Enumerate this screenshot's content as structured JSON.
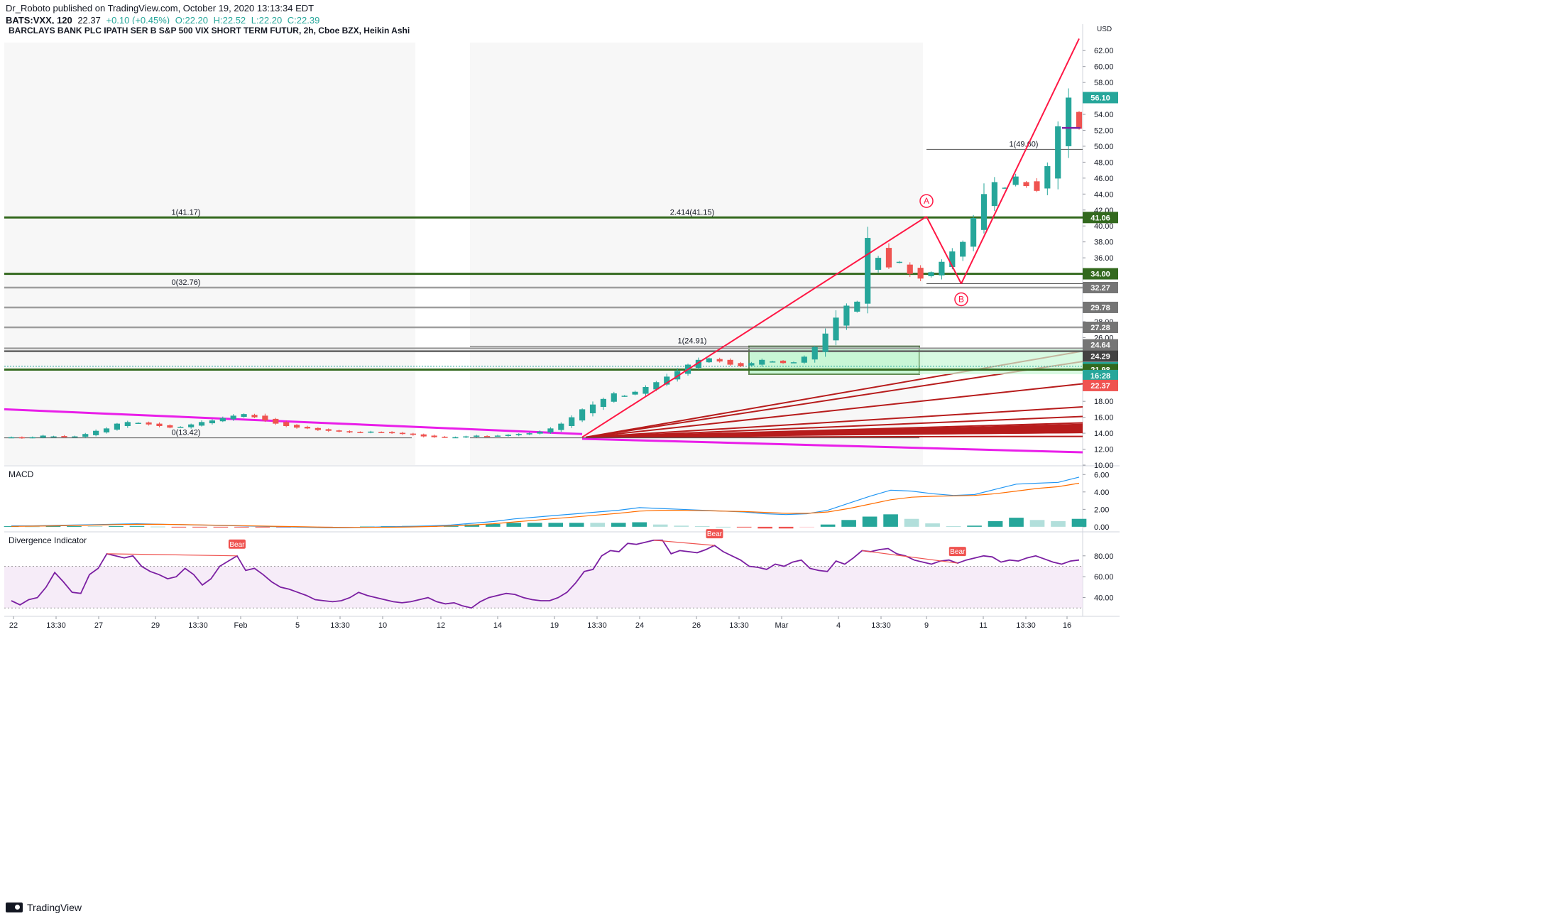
{
  "header": {
    "publisher": "Dr_Roboto published on TradingView.com, October 19, 2020 13:13:34 EDT",
    "symbol": "BATS:VXX, 120",
    "last": "22.37",
    "change": "+0.10 (+0.45%)",
    "open": "O:22.20",
    "high": "H:22.52",
    "low": "L:22.20",
    "close": "C:22.39"
  },
  "chart_title": "BARCLAYS BANK PLC IPATH SER B S&P 500 VIX SHORT TERM FUTUR, 2h, Cboe BZX, Heikin Ashi",
  "colors": {
    "up": "#26a69a",
    "down": "#ef5350",
    "green_line": "#33691e",
    "gray_line": "#9e9e9e",
    "magenta": "#e91ee9",
    "red": "#ff1744",
    "dark_red": "#b71c1c",
    "macd": "#2196f3",
    "signal": "#ff6d00",
    "osc": "#7b1fa2"
  },
  "currency": "USD",
  "brand": "TradingView",
  "chart_data": [
    {
      "type": "candlestick",
      "title": "BARCLAYS BANK PLC IPATH SER B S&P 500 VIX SHORT TERM FUTUR, 2h, Cboe BZX, Heikin Ashi",
      "ylim": [
        10,
        63
      ],
      "y_ticks": [
        10,
        12,
        14,
        16,
        18,
        20,
        22,
        24,
        26,
        28,
        30,
        32,
        34,
        36,
        38,
        40,
        42,
        44,
        46,
        48,
        50,
        52,
        54,
        56,
        58,
        60,
        62
      ],
      "x_ticks": [
        "22",
        "13:30",
        "27",
        "29",
        "13:30",
        "Feb",
        "5",
        "13:30",
        "10",
        "12",
        "14",
        "19",
        "13:30",
        "24",
        "26",
        "13:30",
        "Mar",
        "4",
        "13:30",
        "9",
        "11",
        "13:30",
        "16"
      ],
      "close_path": [
        13.5,
        13.4,
        13.5,
        13.7,
        13.6,
        13.5,
        13.6,
        13.9,
        14.3,
        14.6,
        15.2,
        15.4,
        15.3,
        15.1,
        14.9,
        14.7,
        14.8,
        15.1,
        15.4,
        15.6,
        15.9,
        16.2,
        16.4,
        16.0,
        15.6,
        15.2,
        14.9,
        14.7,
        14.6,
        14.4,
        14.3,
        14.2,
        14.1,
        14.1,
        14.2,
        14.1,
        14.0,
        13.9,
        13.8,
        13.6,
        13.5,
        13.5,
        13.5,
        13.6,
        13.7,
        13.6,
        13.7,
        13.8,
        13.9,
        14.0,
        14.2,
        14.6,
        15.2,
        16.0,
        17.0,
        17.6,
        18.3,
        19.0,
        18.7,
        19.2,
        19.8,
        20.4,
        21.1,
        21.8,
        22.6,
        23.2,
        23.4,
        23.0,
        22.6,
        22.4,
        22.8,
        23.2,
        23.0,
        22.8,
        22.9,
        23.6,
        24.8,
        26.5,
        28.5,
        30.0,
        30.5,
        38.5,
        36.0,
        34.8,
        35.5,
        34.0,
        33.4,
        34.2,
        35.5,
        36.8,
        38.0,
        41.0,
        44.0,
        45.5,
        44.8,
        46.2,
        45.0,
        44.4,
        47.5,
        52.5,
        56.1,
        52.2
      ],
      "horizontal_levels": [
        {
          "price": 41.06,
          "label": "41.06",
          "kind": "green",
          "line_label": "1(41.17)",
          "line_label2": "2.414(41.15)"
        },
        {
          "price": 34.0,
          "label": "34.00",
          "kind": "green"
        },
        {
          "price": 32.27,
          "label": "32.27",
          "kind": "gray",
          "line_label": "0(32.76)"
        },
        {
          "price": 29.78,
          "label": "29.78",
          "kind": "gray"
        },
        {
          "price": 27.28,
          "label": "27.28",
          "kind": "gray"
        },
        {
          "price": 24.64,
          "label": "24.64",
          "kind": "gray"
        },
        {
          "price": 24.29,
          "label": "24.29",
          "kind": "dark"
        },
        {
          "price": 22.39,
          "label": "22.39",
          "kind": "up"
        },
        {
          "price": 21.98,
          "label": "21.98",
          "kind": "green"
        }
      ],
      "price_labels": [
        {
          "price": 56.1,
          "label": "56.10",
          "kind": "up"
        },
        {
          "price": 21.0,
          "label": "16:28",
          "kind": "up"
        },
        {
          "price": 20.9,
          "label": "22.37",
          "kind": "down"
        }
      ],
      "fib_labels": [
        {
          "text": "1(49.60)",
          "price": 49.6
        },
        {
          "text": "1(24.91)",
          "price": 24.91
        },
        {
          "text": "0(13.42)",
          "price": 13.42
        }
      ],
      "pattern_points": [
        "A",
        "B"
      ]
    },
    {
      "type": "line",
      "title": "MACD",
      "ylim": [
        -0.5,
        7
      ],
      "y_ticks": [
        0.0,
        2.0,
        4.0,
        6.0
      ],
      "series": [
        {
          "name": "",
          "values": [
            0.1,
            0.1,
            0.15,
            0.2,
            0.25,
            0.3,
            0.35,
            0.3,
            0.25,
            0.2,
            0.15,
            0.1,
            0.05,
            0.0,
            -0.05,
            -0.1,
            -0.1,
            -0.05,
            0.0,
            0.05,
            0.1,
            0.2,
            0.4,
            0.6,
            0.9,
            1.1,
            1.3,
            1.5,
            1.7,
            1.9,
            2.2,
            2.1,
            2.0,
            1.9,
            1.8,
            1.7,
            1.5,
            1.4,
            1.5,
            1.9,
            2.7,
            3.5,
            4.2,
            4.1,
            3.8,
            3.6,
            3.7,
            4.3,
            4.9,
            5.0,
            5.1,
            5.7
          ]
        },
        {
          "name": "",
          "values": [
            0.05,
            0.07,
            0.1,
            0.15,
            0.2,
            0.25,
            0.28,
            0.28,
            0.26,
            0.22,
            0.18,
            0.13,
            0.08,
            0.04,
            0.0,
            -0.05,
            -0.07,
            -0.07,
            -0.05,
            -0.02,
            0.03,
            0.1,
            0.2,
            0.35,
            0.55,
            0.75,
            0.95,
            1.15,
            1.35,
            1.55,
            1.8,
            1.9,
            1.9,
            1.85,
            1.8,
            1.75,
            1.65,
            1.55,
            1.55,
            1.7,
            2.1,
            2.6,
            3.1,
            3.4,
            3.5,
            3.55,
            3.6,
            3.8,
            4.1,
            4.4,
            4.6,
            5.0
          ]
        }
      ]
    },
    {
      "type": "line",
      "title": "Divergence Indicator",
      "ylim": [
        22,
        103
      ],
      "y_ticks": [
        40.0,
        60.0,
        80.0
      ],
      "band": [
        30,
        70
      ],
      "series": [
        {
          "name": "",
          "values": [
            37,
            33,
            38,
            40,
            50,
            64,
            55,
            45,
            44,
            62,
            68,
            82,
            80,
            78,
            80,
            70,
            65,
            62,
            58,
            60,
            68,
            62,
            52,
            58,
            70,
            75,
            80,
            66,
            68,
            62,
            55,
            50,
            48,
            45,
            42,
            38,
            37,
            36,
            37,
            40,
            45,
            42,
            40,
            38,
            36,
            35,
            36,
            38,
            40,
            36,
            34,
            35,
            32,
            30,
            36,
            40,
            42,
            44,
            43,
            40,
            38,
            37,
            37,
            40,
            45,
            54,
            65,
            67,
            80,
            85,
            84,
            92,
            91,
            93,
            95,
            95,
            82,
            85,
            84,
            83,
            86,
            90,
            84,
            80,
            76,
            70,
            69,
            67,
            72,
            70,
            74,
            76,
            68,
            66,
            65,
            75,
            72,
            78,
            85,
            84,
            86,
            87,
            82,
            80,
            76,
            74,
            72,
            75,
            76,
            73,
            76,
            78,
            80,
            79,
            74,
            76,
            75,
            78,
            80,
            77,
            74,
            72,
            75,
            76
          ],
          "annotations": [
            {
              "index": 26,
              "text": "Bear"
            },
            {
              "index": 81,
              "text": "Bear"
            },
            {
              "index": 109,
              "text": "Bear"
            }
          ]
        }
      ]
    }
  ]
}
